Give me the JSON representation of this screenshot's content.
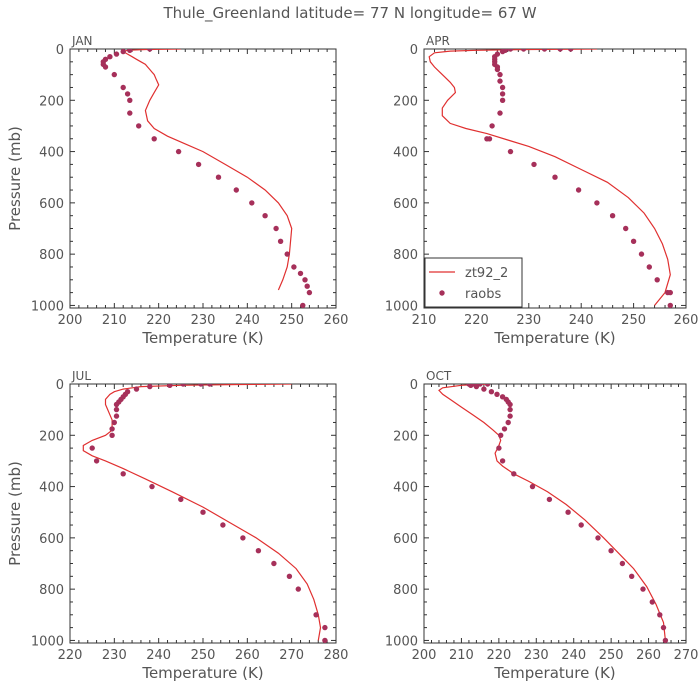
{
  "title": "Thule_Greenland  latitude= 77 N longitude= 67 W",
  "colors": {
    "model": "#e03030",
    "obs": "#a6305a",
    "axis": "#333333",
    "text": "#555555"
  },
  "chart_data": [
    {
      "type": "line",
      "panel": "JAN",
      "xlabel": "Temperature (K)",
      "ylabel": "Pressure (mb)",
      "xlim": [
        200,
        260
      ],
      "ylim": [
        1010,
        0
      ],
      "xticks": [
        200,
        210,
        220,
        230,
        240,
        250,
        260
      ],
      "yticks": [
        0,
        200,
        400,
        600,
        800,
        1000
      ],
      "legend": null,
      "series": [
        {
          "name": "zt92_2",
          "kind": "line",
          "x": [
            225,
            217,
            213,
            212,
            213,
            214,
            215,
            216,
            217,
            217.5,
            218,
            218.5,
            219,
            219.5,
            220,
            219,
            218,
            217,
            217.5,
            219,
            222,
            226,
            230,
            235,
            240,
            244,
            247,
            249,
            250,
            249.5,
            249,
            248,
            247
          ],
          "y": [
            0,
            2,
            5,
            10,
            20,
            30,
            40,
            50,
            60,
            70,
            80,
            90,
            100,
            120,
            140,
            170,
            200,
            240,
            280,
            310,
            340,
            370,
            400,
            450,
            500,
            550,
            600,
            650,
            700,
            800,
            850,
            900,
            940
          ]
        },
        {
          "name": "raobs",
          "kind": "scatter",
          "x": [
            218,
            213.5,
            212,
            210.5,
            209,
            208,
            207.5,
            207.5,
            208,
            210,
            212,
            213,
            213.5,
            213.5,
            215.5,
            219,
            224.5,
            229,
            233.5,
            237.5,
            241,
            244,
            246.5,
            247.5,
            249,
            250.5,
            252,
            253,
            253.5,
            254,
            252.5
          ],
          "y": [
            0,
            5,
            10,
            20,
            30,
            40,
            50,
            60,
            70,
            100,
            150,
            175,
            200,
            250,
            300,
            350,
            400,
            450,
            500,
            550,
            600,
            650,
            700,
            750,
            800,
            850,
            875,
            900,
            925,
            950,
            1000
          ]
        }
      ]
    },
    {
      "type": "line",
      "panel": "APR",
      "xlabel": "Temperature (K)",
      "ylabel": "",
      "xlim": [
        210,
        260
      ],
      "ylim": [
        1010,
        0
      ],
      "xticks": [
        210,
        220,
        230,
        240,
        250,
        260
      ],
      "yticks": [
        0,
        200,
        400,
        600,
        800,
        1000
      ],
      "legend": "lower-left",
      "series": [
        {
          "name": "zt92_2",
          "kind": "line",
          "x": [
            243,
            230,
            220,
            215,
            212,
            211,
            211.2,
            212,
            213,
            214,
            215,
            215.8,
            216,
            214.5,
            213.5,
            213.5,
            215,
            218,
            222,
            226,
            230,
            235,
            240,
            245,
            249,
            252,
            254,
            255.5,
            256.5,
            257,
            256,
            254
          ],
          "y": [
            0,
            2,
            5,
            8,
            15,
            30,
            50,
            70,
            90,
            110,
            130,
            150,
            170,
            200,
            230,
            260,
            290,
            310,
            330,
            355,
            380,
            420,
            470,
            520,
            580,
            640,
            700,
            760,
            820,
            880,
            950,
            1000
          ]
        },
        {
          "name": "raobs",
          "kind": "scatter",
          "x": [
            238,
            236,
            233,
            229,
            226.5,
            225.5,
            225,
            224,
            223.5,
            223.5,
            223.5,
            223.5,
            224,
            224,
            224.5,
            224.5,
            225,
            225,
            225,
            224.5,
            223,
            222,
            222.5,
            226.5,
            231,
            235,
            239.5,
            243,
            246,
            248.5,
            250,
            251.5,
            253,
            254.5,
            256.5,
            257,
            257
          ],
          "y": [
            0,
            0,
            0,
            0,
            0,
            5,
            10,
            20,
            30,
            40,
            50,
            60,
            70,
            80,
            100,
            125,
            150,
            175,
            200,
            250,
            300,
            350,
            350,
            400,
            450,
            500,
            550,
            600,
            650,
            700,
            750,
            800,
            850,
            900,
            950,
            950,
            1000
          ]
        }
      ]
    },
    {
      "type": "line",
      "panel": "JUL",
      "xlabel": "Temperature (K)",
      "ylabel": "Pressure (mb)",
      "xlim": [
        220,
        280
      ],
      "ylim": [
        1010,
        0
      ],
      "xticks": [
        220,
        230,
        240,
        250,
        260,
        270,
        280
      ],
      "yticks": [
        0,
        200,
        400,
        600,
        800,
        1000
      ],
      "legend": null,
      "series": [
        {
          "name": "zt92_2",
          "kind": "line",
          "x": [
            270,
            258,
            245,
            236,
            232,
            230,
            229,
            228,
            228,
            228.5,
            229,
            229.5,
            229.5,
            228,
            225,
            223,
            223,
            225,
            228,
            232,
            237,
            243,
            250,
            256,
            262,
            267,
            271,
            273.5,
            275,
            276,
            276.5,
            276
          ],
          "y": [
            0,
            2,
            5,
            10,
            20,
            30,
            40,
            60,
            80,
            100,
            120,
            140,
            180,
            200,
            220,
            240,
            260,
            280,
            300,
            330,
            370,
            420,
            480,
            540,
            600,
            660,
            720,
            780,
            840,
            900,
            950,
            1000
          ]
        },
        {
          "name": "raobs",
          "kind": "scatter",
          "x": [
            251.5,
            249.5,
            245.5,
            242.5,
            238,
            235,
            233,
            232.5,
            232,
            231.5,
            231,
            230.5,
            230.5,
            230.5,
            230,
            229.5,
            229.5,
            225,
            226,
            232,
            238.5,
            245,
            250,
            254.5,
            259,
            262.5,
            266,
            269.5,
            271.5,
            275.5,
            277.5,
            277.5
          ],
          "y": [
            0,
            0,
            0,
            5,
            10,
            20,
            30,
            40,
            50,
            60,
            70,
            80,
            100,
            125,
            150,
            175,
            200,
            250,
            300,
            350,
            400,
            450,
            500,
            550,
            600,
            650,
            700,
            750,
            800,
            900,
            950,
            1000
          ]
        }
      ]
    },
    {
      "type": "line",
      "panel": "OCT",
      "xlabel": "Temperature (K)",
      "ylabel": "",
      "xlim": [
        200,
        270
      ],
      "ylim": [
        1010,
        0
      ],
      "xticks": [
        200,
        210,
        220,
        230,
        240,
        250,
        260,
        270
      ],
      "yticks": [
        0,
        200,
        400,
        600,
        800,
        1000
      ],
      "legend": null,
      "series": [
        {
          "name": "zt92_2",
          "kind": "line",
          "x": [
            217,
            210,
            205,
            204,
            205,
            207,
            210,
            213,
            216,
            218.5,
            220,
            220.5,
            220,
            219,
            219.5,
            221,
            224,
            228,
            233,
            238,
            243,
            248,
            252,
            256,
            259.5,
            262,
            264,
            264.5
          ],
          "y": [
            0,
            5,
            15,
            25,
            40,
            60,
            90,
            120,
            150,
            180,
            200,
            220,
            240,
            270,
            300,
            320,
            350,
            380,
            420,
            470,
            530,
            600,
            660,
            720,
            790,
            860,
            930,
            1000
          ]
        },
        {
          "name": "raobs",
          "kind": "scatter",
          "x": [
            217,
            215,
            213,
            212,
            212.5,
            214,
            216,
            218,
            219.5,
            221,
            222,
            222.5,
            223,
            223,
            223,
            222.5,
            221.5,
            220.5,
            220,
            221,
            224,
            229,
            233.5,
            238.5,
            242,
            246.5,
            250,
            253,
            255.5,
            258.5,
            261,
            263,
            264,
            264.5
          ],
          "y": [
            0,
            0,
            0,
            0,
            5,
            10,
            20,
            30,
            40,
            50,
            60,
            70,
            80,
            100,
            125,
            150,
            175,
            200,
            250,
            300,
            350,
            400,
            450,
            500,
            550,
            600,
            650,
            700,
            750,
            800,
            850,
            900,
            950,
            1000
          ]
        }
      ]
    }
  ]
}
